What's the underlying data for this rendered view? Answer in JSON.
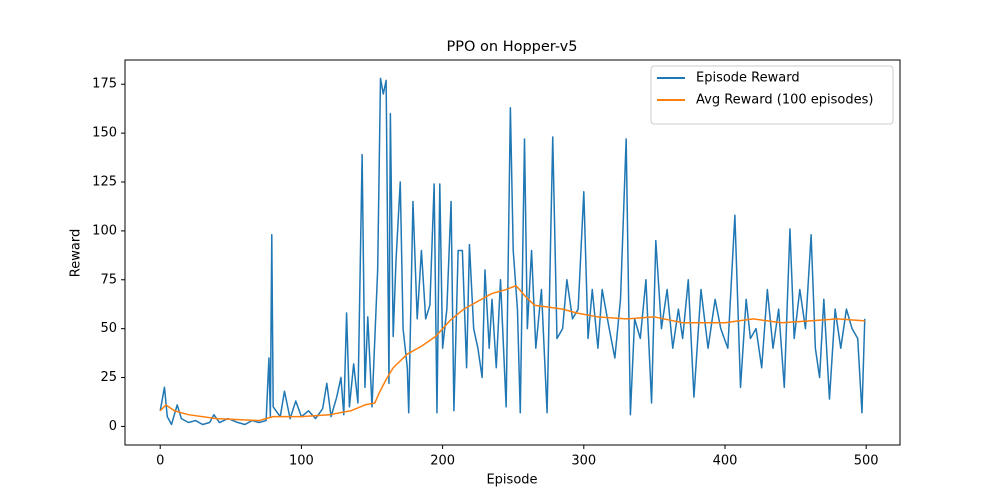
{
  "chart_data": {
    "type": "line",
    "title": "PPO on Hopper-v5",
    "x_label": "Episode",
    "y_label": "Reward",
    "xlim": [
      -24.95,
      523.95
    ],
    "ylim": [
      -9.5,
      187.4
    ],
    "xticks": [
      0,
      100,
      200,
      300,
      400,
      500
    ],
    "yticks": [
      0,
      25,
      50,
      75,
      100,
      125,
      150,
      175
    ],
    "legend": "upper right",
    "grid": false,
    "series": [
      {
        "name": "Episode Reward",
        "color": "#1f77b4",
        "x": [
          0,
          3,
          5,
          8,
          12,
          15,
          20,
          25,
          30,
          35,
          38,
          42,
          48,
          55,
          60,
          65,
          70,
          75,
          77,
          78,
          79,
          80,
          85,
          88,
          92,
          96,
          100,
          105,
          110,
          115,
          118,
          121,
          125,
          128,
          130,
          132,
          134,
          137,
          140,
          143,
          145,
          147,
          150,
          154,
          156,
          158,
          160,
          162,
          163,
          165,
          167,
          170,
          172,
          175,
          176,
          179,
          182,
          185,
          188,
          191,
          194,
          196,
          198,
          200,
          203,
          206,
          208,
          211,
          214,
          217,
          219,
          222,
          225,
          228,
          230,
          233,
          235,
          238,
          241,
          245,
          248,
          250,
          253,
          255,
          258,
          260,
          263,
          266,
          270,
          274,
          278,
          281,
          285,
          288,
          292,
          296,
          300,
          303,
          306,
          310,
          313,
          318,
          322,
          326,
          330,
          333,
          336,
          340,
          344,
          348,
          351,
          355,
          359,
          363,
          367,
          370,
          374,
          378,
          383,
          388,
          393,
          397,
          402,
          407,
          411,
          415,
          418,
          422,
          426,
          430,
          434,
          438,
          442,
          446,
          449,
          453,
          457,
          461,
          464,
          467,
          470,
          474,
          478,
          482,
          486,
          490,
          494,
          497,
          499
        ],
        "values": [
          8,
          20,
          5,
          1,
          11,
          4,
          2,
          3,
          1,
          2,
          6,
          2,
          4,
          2,
          1,
          3,
          2,
          3,
          35,
          5,
          98,
          10,
          5,
          18,
          4,
          13,
          5,
          8,
          4,
          9,
          22,
          5,
          15,
          25,
          6,
          58,
          10,
          32,
          12,
          139,
          20,
          56,
          10,
          80,
          178,
          170,
          177,
          22,
          160,
          46,
          85,
          125,
          50,
          30,
          7,
          115,
          55,
          90,
          55,
          62,
          124,
          7,
          124,
          40,
          60,
          115,
          8,
          90,
          90,
          30,
          93,
          50,
          40,
          25,
          80,
          40,
          65,
          30,
          75,
          10,
          163,
          90,
          60,
          7,
          147,
          50,
          90,
          40,
          70,
          7,
          148,
          45,
          50,
          75,
          55,
          60,
          120,
          45,
          70,
          40,
          70,
          50,
          35,
          65,
          147,
          6,
          55,
          45,
          75,
          12,
          95,
          50,
          70,
          40,
          60,
          45,
          75,
          15,
          70,
          40,
          65,
          50,
          40,
          108,
          20,
          65,
          45,
          50,
          30,
          70,
          40,
          60,
          20,
          101,
          45,
          70,
          50,
          98,
          40,
          25,
          65,
          14,
          60,
          40,
          60,
          50,
          45,
          7,
          55
        ]
      },
      {
        "name": "Avg Reward (100 episodes)",
        "color": "#ff7f0e",
        "x": [
          0,
          4,
          10,
          20,
          40,
          70,
          80,
          100,
          120,
          135,
          145,
          152,
          155,
          160,
          165,
          175,
          185,
          195,
          205,
          215,
          225,
          235,
          245,
          252,
          258,
          265,
          275,
          285,
          295,
          310,
          330,
          350,
          370,
          400,
          420,
          440,
          460,
          480,
          499
        ],
        "values": [
          8,
          11,
          8,
          6,
          4,
          3,
          5,
          5,
          6,
          8,
          11,
          12,
          17,
          24,
          30,
          37,
          41,
          46,
          54,
          60,
          64,
          68,
          70,
          72,
          67,
          62,
          61,
          60,
          58,
          56,
          55,
          56,
          53,
          53,
          55,
          53,
          54,
          55,
          54
        ]
      }
    ]
  }
}
